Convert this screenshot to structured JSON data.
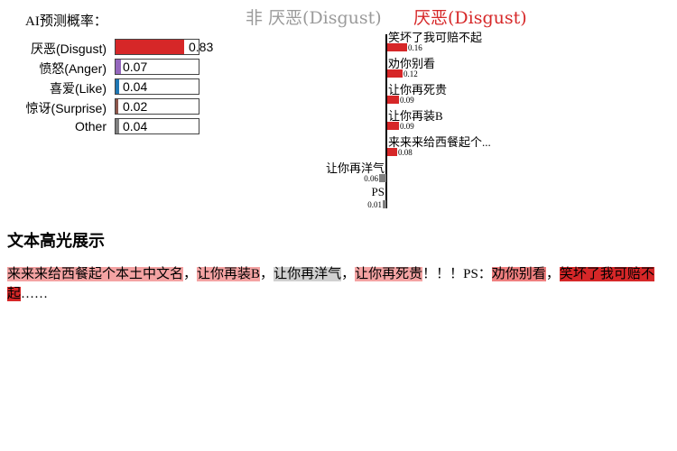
{
  "prediction": {
    "title": "AI预测概率：",
    "rows": [
      {
        "label": "厌恶(Disgust)",
        "value": 0.83,
        "display": "0.83",
        "color": "#d62728"
      },
      {
        "label": "愤怒(Anger)",
        "value": 0.07,
        "display": "0.07",
        "color": "#9467bd"
      },
      {
        "label": "喜爱(Like)",
        "value": 0.04,
        "display": "0.04",
        "color": "#1f77b4"
      },
      {
        "label": "惊讶(Surprise)",
        "value": 0.02,
        "display": "0.02",
        "color": "#8c564b"
      },
      {
        "label": "Other",
        "value": 0.04,
        "display": "0.04",
        "color": "#7f7f7f"
      }
    ]
  },
  "importance": {
    "negative_header": "非 厌恶(Disgust)",
    "positive_header": "厌恶(Disgust)",
    "positive_color": "#d62728",
    "negative_color": "#808080",
    "features": [
      {
        "text": "笑坏了我可赔不起",
        "value": 0.16,
        "display": "0.16",
        "side": "positive"
      },
      {
        "text": "劝你别看",
        "value": 0.12,
        "display": "0.12",
        "side": "positive"
      },
      {
        "text": "让你再死贵",
        "value": 0.09,
        "display": "0.09",
        "side": "positive"
      },
      {
        "text": "让你再装B",
        "value": 0.09,
        "display": "0.09",
        "side": "positive"
      },
      {
        "text": "来来来给西餐起个...",
        "value": 0.08,
        "display": "0.08",
        "side": "positive"
      },
      {
        "text": "让你再洋气",
        "value": 0.06,
        "display": "0.06",
        "side": "negative"
      },
      {
        "text": "PS",
        "value": 0.01,
        "display": "0.01",
        "side": "negative"
      }
    ]
  },
  "highlight": {
    "title": "文本高光展示",
    "segments": [
      {
        "text": "来来来给西餐起个本土中文名",
        "bg": "#f4a3a3"
      },
      {
        "text": "，",
        "bg": ""
      },
      {
        "text": "让你再装B",
        "bg": "#f4a3a3"
      },
      {
        "text": "，",
        "bg": ""
      },
      {
        "text": "让你再洋气",
        "bg": "#d0d0d0"
      },
      {
        "text": "，",
        "bg": ""
      },
      {
        "text": "让你再死贵",
        "bg": "#f4a3a3"
      },
      {
        "text": "！！！PS：",
        "bg": ""
      },
      {
        "text": "劝你别看",
        "bg": "#ef7f7f"
      },
      {
        "text": "，",
        "bg": ""
      },
      {
        "text": "笑坏了我可赔不起",
        "bg": "#d62728"
      },
      {
        "text": "……",
        "bg": ""
      }
    ]
  }
}
